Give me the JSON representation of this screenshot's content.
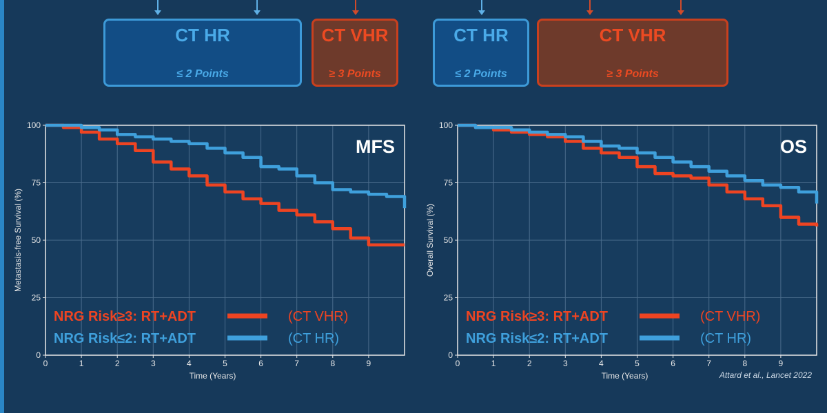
{
  "boxes": [
    {
      "title": "CT HR",
      "points": "≤ 2 Points",
      "kind": "hr"
    },
    {
      "title": "CT VHR",
      "points": "≥ 3 Points",
      "kind": "vhr"
    },
    {
      "title": "CT HR",
      "points": "≤ 2 Points",
      "kind": "hr"
    },
    {
      "title": "CT VHR",
      "points": "≥ 3 Points",
      "kind": "vhr"
    }
  ],
  "citation": "Attard et al., Lancet 2022",
  "colors": {
    "red": "#ee4422",
    "blue": "#3fa0dc",
    "axis": "#e8e8e8",
    "grid": "#4a6c8c"
  },
  "chart_data": [
    {
      "type": "line",
      "title": "MFS",
      "xlabel": "Time (Years)",
      "ylabel": "Metastasis-free Survival (%)",
      "xlim": [
        0,
        10
      ],
      "ylim": [
        0,
        100
      ],
      "xticks": [
        "0",
        "1",
        "2",
        "3",
        "4",
        "5",
        "6",
        "7",
        "8",
        "9"
      ],
      "yticks": [
        "0",
        "25",
        "50",
        "75",
        "100"
      ],
      "legend": [
        {
          "label": "NRG Risk≥3: RT+ADT",
          "note": "(CT VHR)",
          "color": "#ee4422"
        },
        {
          "label": "NRG Risk≤2: RT+ADT",
          "note": "(CT HR)",
          "color": "#3fa0dc"
        }
      ],
      "series": [
        {
          "name": "NRG Risk≥3: RT+ADT",
          "color": "#ee4422",
          "x": [
            0,
            0.5,
            1,
            1.5,
            2,
            2.5,
            3,
            3.5,
            4,
            4.5,
            5,
            5.5,
            6,
            6.5,
            7,
            7.5,
            8,
            8.5,
            9,
            9.5,
            10
          ],
          "y": [
            100,
            99,
            97,
            94,
            92,
            89,
            84,
            81,
            78,
            74,
            71,
            68,
            66,
            63,
            61,
            58,
            55,
            51,
            48,
            48,
            48
          ]
        },
        {
          "name": "NRG Risk≤2: RT+ADT",
          "color": "#3fa0dc",
          "x": [
            0,
            0.5,
            1,
            1.5,
            2,
            2.5,
            3,
            3.5,
            4,
            4.5,
            5,
            5.5,
            6,
            6.5,
            7,
            7.5,
            8,
            8.5,
            9,
            9.5,
            10
          ],
          "y": [
            100,
            100,
            99,
            98,
            96,
            95,
            94,
            93,
            92,
            90,
            88,
            86,
            82,
            81,
            78,
            75,
            72,
            71,
            70,
            69,
            64
          ]
        }
      ]
    },
    {
      "type": "line",
      "title": "OS",
      "xlabel": "Time (Years)",
      "ylabel": "Overall Survival (%)",
      "xlim": [
        0,
        10
      ],
      "ylim": [
        0,
        100
      ],
      "xticks": [
        "0",
        "1",
        "2",
        "3",
        "4",
        "5",
        "6",
        "7",
        "8",
        "9"
      ],
      "yticks": [
        "0",
        "25",
        "50",
        "75",
        "100"
      ],
      "legend": [
        {
          "label": "NRG Risk≥3: RT+ADT",
          "note": "(CT VHR)",
          "color": "#ee4422"
        },
        {
          "label": "NRG Risk≤2: RT+ADT",
          "note": "(CT HR)",
          "color": "#3fa0dc"
        }
      ],
      "series": [
        {
          "name": "NRG Risk≥3: RT+ADT",
          "color": "#ee4422",
          "x": [
            0,
            0.5,
            1,
            1.5,
            2,
            2.5,
            3,
            3.5,
            4,
            4.5,
            5,
            5.5,
            6,
            6.5,
            7,
            7.5,
            8,
            8.5,
            9,
            9.5,
            10
          ],
          "y": [
            100,
            99,
            98,
            97,
            96,
            95,
            93,
            90,
            88,
            86,
            82,
            79,
            78,
            77,
            74,
            71,
            68,
            65,
            60,
            57,
            56
          ]
        },
        {
          "name": "NRG Risk≤2: RT+ADT",
          "color": "#3fa0dc",
          "x": [
            0,
            0.5,
            1,
            1.5,
            2,
            2.5,
            3,
            3.5,
            4,
            4.5,
            5,
            5.5,
            6,
            6.5,
            7,
            7.5,
            8,
            8.5,
            9,
            9.5,
            10
          ],
          "y": [
            100,
            99,
            99,
            98,
            97,
            96,
            95,
            93,
            91,
            90,
            88,
            86,
            84,
            82,
            80,
            78,
            76,
            74,
            73,
            71,
            66
          ]
        }
      ]
    }
  ]
}
